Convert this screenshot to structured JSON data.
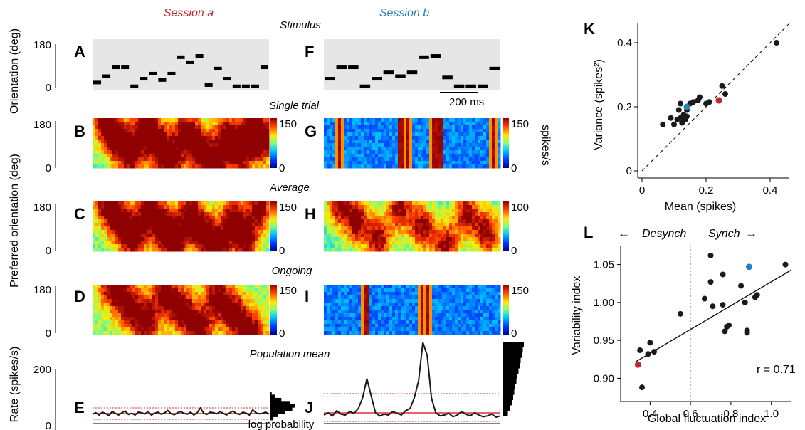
{
  "columns": {
    "session_a": {
      "label": "Session a",
      "color": "#c0282f"
    },
    "session_b": {
      "label": "Session b",
      "color": "#2a7fbf"
    }
  },
  "section_titles": {
    "stimulus": "Stimulus",
    "single_trial": "Single trial",
    "average": "Average",
    "ongoing": "Ongoing",
    "population_mean": "Population mean"
  },
  "panel_letters": {
    "A": "A",
    "B": "B",
    "C": "C",
    "D": "D",
    "E": "E",
    "F": "F",
    "G": "G",
    "H": "H",
    "I": "I",
    "J": "J",
    "K": "K",
    "L": "L"
  },
  "axes": {
    "stim_ylabel": "Orientation (deg)",
    "stim_ticks": [
      "180",
      "0"
    ],
    "pref_ylabel": "Preferred orientation (deg)",
    "pref_ticks": [
      "180",
      "0"
    ],
    "rate_ylabel": "Rate (spikes/s)",
    "rate_ticks": [
      "200",
      "0"
    ],
    "log_probability": "log probability",
    "scalebar_label": "200 ms",
    "colorbar_unit": "spikes/s"
  },
  "colorbars": {
    "B": {
      "max": "150",
      "min": "0"
    },
    "G": {
      "max": "150",
      "min": "0"
    },
    "C": {
      "max": "150",
      "min": "0"
    },
    "H": {
      "max": "100",
      "min": "0"
    },
    "D": {
      "max": "150",
      "min": "0"
    },
    "I": {
      "max": "150",
      "min": "0"
    }
  },
  "stimulus": {
    "session_a_orientations": [
      20,
      45,
      80,
      80,
      5,
      35,
      55,
      30,
      55,
      120,
      100,
      125,
      10,
      75,
      35,
      5,
      5,
      5,
      80
    ],
    "session_b_orientations": [
      35,
      80,
      80,
      5,
      35,
      60,
      45,
      60,
      120,
      125,
      40,
      5,
      5,
      5,
      75
    ]
  },
  "heatmaps": {
    "B": {
      "peak_times": [
        0.06,
        0.13,
        0.21,
        0.29,
        0.36,
        0.44,
        0.52,
        0.6,
        0.68,
        0.75,
        0.83,
        0.9,
        0.96
      ],
      "base": 30
    },
    "C": {
      "peak_times": [
        0.07,
        0.15,
        0.23,
        0.31,
        0.39,
        0.46,
        0.54,
        0.62,
        0.7,
        0.78,
        0.86,
        0.94
      ],
      "base": 30
    },
    "D": {
      "peak_times": [
        0.1,
        0.2,
        0.3,
        0.4,
        0.5,
        0.6,
        0.7,
        0.8,
        0.9
      ],
      "base": 40
    },
    "G": {
      "bands": [
        0.08,
        0.43,
        0.47,
        0.62,
        0.65,
        0.95
      ],
      "base": 15
    },
    "H": {
      "peak_times": [
        0.08,
        0.18,
        0.3,
        0.42,
        0.55,
        0.68,
        0.8,
        0.92
      ],
      "base": 20
    },
    "I": {
      "bands": [
        0.23,
        0.55,
        0.58
      ],
      "base": 12
    }
  },
  "population_mean": {
    "session_a_rate": [
      33,
      38,
      30,
      40,
      35,
      28,
      42,
      36,
      30,
      38,
      44,
      32,
      36,
      30,
      40,
      38,
      34,
      42,
      30,
      36,
      40,
      33,
      37,
      46,
      35,
      31,
      38,
      42,
      36,
      33,
      40,
      30,
      38,
      55,
      36,
      32,
      40,
      38,
      34,
      42,
      36,
      30,
      38,
      44,
      35,
      32,
      40,
      36,
      30,
      48,
      38,
      34,
      36,
      40,
      33
    ],
    "session_b_rate": [
      20,
      25,
      18,
      30,
      22,
      20,
      28,
      24,
      35,
      60,
      105,
      65,
      25,
      18,
      22,
      20,
      28,
      24,
      20,
      30,
      35,
      60,
      100,
      190,
      160,
      60,
      25,
      18,
      20,
      24,
      16,
      20,
      28,
      22,
      18,
      25,
      20,
      16,
      18,
      22,
      15,
      18
    ],
    "session_a_mean_line": 35,
    "session_b_mean_line": 25,
    "session_a_band": [
      15,
      55
    ],
    "session_b_band": [
      5,
      70
    ],
    "session_a_hist": [
      0.05,
      0.2,
      0.45,
      0.8,
      1.0,
      0.9,
      0.6,
      0.3,
      0.12
    ],
    "session_b_hist": [
      1.0,
      0.95,
      0.9,
      0.85,
      0.8,
      0.75,
      0.7,
      0.65,
      0.6,
      0.55,
      0.5,
      0.45,
      0.35,
      0.25
    ]
  },
  "chart_data": [
    {
      "type": "scatter",
      "panel": "K",
      "xlabel": "Mean (spikes)",
      "ylabel": "Variance (spikes²)",
      "xticks": [
        "0",
        "0.2",
        "0.4"
      ],
      "yticks": [
        "0",
        "0.2",
        "0.4"
      ],
      "xlim": [
        0,
        0.46
      ],
      "ylim": [
        0,
        0.46
      ],
      "identity_line": true,
      "points": [
        {
          "x": 0.065,
          "y": 0.145
        },
        {
          "x": 0.09,
          "y": 0.165
        },
        {
          "x": 0.1,
          "y": 0.145
        },
        {
          "x": 0.11,
          "y": 0.16
        },
        {
          "x": 0.115,
          "y": 0.19
        },
        {
          "x": 0.12,
          "y": 0.165
        },
        {
          "x": 0.12,
          "y": 0.21
        },
        {
          "x": 0.125,
          "y": 0.15
        },
        {
          "x": 0.13,
          "y": 0.175
        },
        {
          "x": 0.135,
          "y": 0.16
        },
        {
          "x": 0.14,
          "y": 0.17
        },
        {
          "x": 0.14,
          "y": 0.19
        },
        {
          "x": 0.15,
          "y": 0.21
        },
        {
          "x": 0.16,
          "y": 0.215
        },
        {
          "x": 0.175,
          "y": 0.22
        },
        {
          "x": 0.18,
          "y": 0.23
        },
        {
          "x": 0.2,
          "y": 0.21
        },
        {
          "x": 0.21,
          "y": 0.215
        },
        {
          "x": 0.25,
          "y": 0.265
        },
        {
          "x": 0.26,
          "y": 0.24
        },
        {
          "x": 0.42,
          "y": 0.4
        }
      ],
      "highlight_points": [
        {
          "x": 0.14,
          "y": 0.2,
          "color": "#2a7fbf"
        },
        {
          "x": 0.24,
          "y": 0.22,
          "color": "#c0282f"
        }
      ]
    },
    {
      "type": "scatter",
      "panel": "L",
      "xlabel": "Global fluctuation index",
      "ylabel": "Variability index",
      "xticks": [
        "0.4",
        "0.6",
        "0.8",
        "1.0"
      ],
      "yticks": [
        "0.90",
        "0.95",
        "1.00",
        "1.05"
      ],
      "xlim": [
        0.3,
        1.1
      ],
      "ylim": [
        0.875,
        1.075
      ],
      "divider_x": 0.6,
      "left_label": "Desynch",
      "right_label": "Synch",
      "annotation": "r = 0.71",
      "fit_line": [
        [
          0.33,
          0.922
        ],
        [
          1.1,
          1.043
        ]
      ],
      "points": [
        {
          "x": 0.35,
          "y": 0.937
        },
        {
          "x": 0.36,
          "y": 0.888
        },
        {
          "x": 0.39,
          "y": 0.932
        },
        {
          "x": 0.4,
          "y": 0.947
        },
        {
          "x": 0.42,
          "y": 0.935
        },
        {
          "x": 0.55,
          "y": 0.985
        },
        {
          "x": 0.67,
          "y": 1.005
        },
        {
          "x": 0.7,
          "y": 1.062
        },
        {
          "x": 0.7,
          "y": 1.027
        },
        {
          "x": 0.71,
          "y": 0.995
        },
        {
          "x": 0.76,
          "y": 1.037
        },
        {
          "x": 0.76,
          "y": 0.997
        },
        {
          "x": 0.77,
          "y": 0.962
        },
        {
          "x": 0.78,
          "y": 0.968
        },
        {
          "x": 0.79,
          "y": 0.97
        },
        {
          "x": 0.85,
          "y": 1.022
        },
        {
          "x": 0.87,
          "y": 1.0
        },
        {
          "x": 0.88,
          "y": 0.96
        },
        {
          "x": 0.88,
          "y": 0.963
        },
        {
          "x": 0.92,
          "y": 1.007
        },
        {
          "x": 0.93,
          "y": 1.01
        },
        {
          "x": 1.07,
          "y": 1.05
        }
      ],
      "highlight_points": [
        {
          "x": 0.34,
          "y": 0.918,
          "color": "#c0282f"
        },
        {
          "x": 0.89,
          "y": 1.047,
          "color": "#2a7fbf"
        }
      ]
    }
  ]
}
